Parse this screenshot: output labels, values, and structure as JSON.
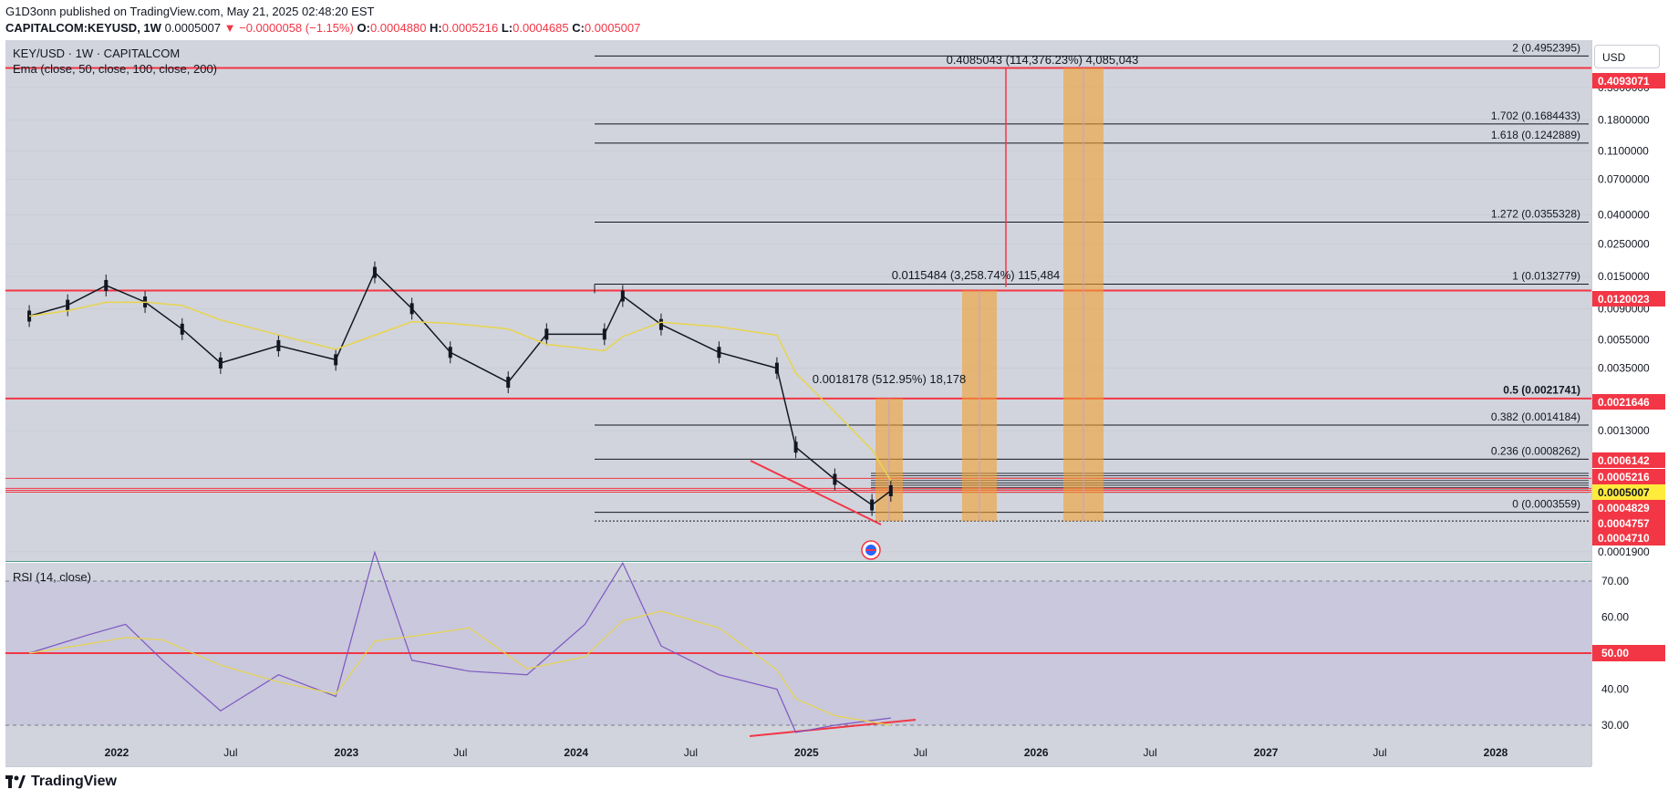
{
  "header": {
    "line1": "G1D3onn published on TradingView.com, May 21, 2025 02:48:20 EST",
    "symbol": "CAPITALCOM:KEYUSD, 1W",
    "last": "0.0005007",
    "change": "▼ −0.0000058 (−1.15%)",
    "o_label": "O:",
    "o": "0.0004880",
    "h_label": "H:",
    "h": "0.0005216",
    "l_label": "L:",
    "l": "0.0004685",
    "c_label": "C:",
    "c": "0.0005007"
  },
  "legend": {
    "title": "KEY/USD · 1W · CAPITALCOM",
    "ema": "Ema (close, 50, close, 100, close, 200)",
    "rsi": "RSI (14, close)"
  },
  "currency": "USD",
  "footer": {
    "brand": "TradingView"
  },
  "colors": {
    "bg": "#d1d4dc",
    "rsi_bg": "#c9c8dc",
    "red": "#f23645",
    "orange": "#f0a030",
    "rsi_line": "#7e57c2",
    "ema": "#e8d44d",
    "up": "#26a69a",
    "down": "#131722"
  },
  "chart_data": [
    {
      "type": "candlestick",
      "title": "KEY/USD · 1W · CAPITALCOM",
      "y_scale": "log",
      "y_ticks": [
        "0.3000000",
        "0.1800000",
        "0.1100000",
        "0.0700000",
        "0.0400000",
        "0.0250000",
        "0.0150000",
        "0.0090000",
        "0.0055000",
        "0.0035000",
        "0.0013000",
        "0.0001900"
      ],
      "x_ticks": [
        "2022",
        "Jul",
        "2023",
        "Jul",
        "2024",
        "Jul",
        "2025",
        "Jul",
        "2026",
        "Jul",
        "2027",
        "Jul",
        "2028"
      ],
      "price_path": [
        {
          "date": "2021-08",
          "close": 0.008
        },
        {
          "date": "2021-10",
          "close": 0.0095
        },
        {
          "date": "2021-12",
          "close": 0.013
        },
        {
          "date": "2022-02",
          "close": 0.01
        },
        {
          "date": "2022-04",
          "close": 0.0065
        },
        {
          "date": "2022-06",
          "close": 0.0038
        },
        {
          "date": "2022-09",
          "close": 0.005
        },
        {
          "date": "2022-12",
          "close": 0.004
        },
        {
          "date": "2023-02",
          "close": 0.016
        },
        {
          "date": "2023-04",
          "close": 0.009
        },
        {
          "date": "2023-06",
          "close": 0.0045
        },
        {
          "date": "2023-09",
          "close": 0.0028
        },
        {
          "date": "2023-11",
          "close": 0.006
        },
        {
          "date": "2024-02",
          "close": 0.006
        },
        {
          "date": "2024-03",
          "close": 0.011
        },
        {
          "date": "2024-05",
          "close": 0.007
        },
        {
          "date": "2024-08",
          "close": 0.0045
        },
        {
          "date": "2024-11",
          "close": 0.0035
        },
        {
          "date": "2024-12",
          "close": 0.001
        },
        {
          "date": "2025-02",
          "close": 0.0006
        },
        {
          "date": "2025-04",
          "close": 0.0004
        },
        {
          "date": "2025-05",
          "close": 0.0005007
        }
      ],
      "horizontal_levels": [
        "0.4093071",
        "0.0120023",
        "0.0021646"
      ],
      "fib_labels": [
        "2 (0.4952395)",
        "1.702 (0.1684433)",
        "1.618 (0.1242889)",
        "1.272 (0.0355328)",
        "1 (0.0132779)",
        "0.5 (0.0021741)",
        "0.382 (0.0014184)",
        "0.236 (0.0008262)",
        "0 (0.0003559)"
      ],
      "price_labels": [
        {
          "text": "0.4093071",
          "style": "red"
        },
        {
          "text": "0.0120023",
          "style": "red"
        },
        {
          "text": "0.0021646",
          "style": "red"
        },
        {
          "text": "0.0006142",
          "style": "red"
        },
        {
          "text": "0.0005216",
          "style": "red"
        },
        {
          "text": "0.0005007",
          "style": "yellow"
        },
        {
          "text": "0.0004829",
          "style": "red"
        },
        {
          "text": "0.0004757",
          "style": "red"
        },
        {
          "text": "0.0004710",
          "style": "red"
        }
      ],
      "measurements": [
        {
          "text": "0.4085043 (114,376.23%) 4,085,043"
        },
        {
          "text": "0.0115484 (3,258.74%) 115,484"
        },
        {
          "text": "0.0018178 (512.95%) 18,178"
        }
      ]
    },
    {
      "type": "line",
      "title": "RSI (14, close)",
      "y_ticks": [
        "70.00",
        "60.00",
        "50.00",
        "40.00",
        "30.00"
      ],
      "ylim": [
        25,
        77
      ],
      "highlight_level": "50.00",
      "x": [
        "2021-08",
        "2021-11",
        "2022-01",
        "2022-03",
        "2022-06",
        "2022-09",
        "2022-12",
        "2023-02",
        "2023-04",
        "2023-07",
        "2023-10",
        "2024-01",
        "2024-03",
        "2024-05",
        "2024-08",
        "2024-11",
        "2024-12",
        "2025-02",
        "2025-05"
      ],
      "values": [
        50,
        55,
        58,
        48,
        34,
        44,
        38,
        78,
        48,
        45,
        44,
        58,
        75,
        52,
        44,
        40,
        28,
        30,
        32
      ]
    }
  ]
}
